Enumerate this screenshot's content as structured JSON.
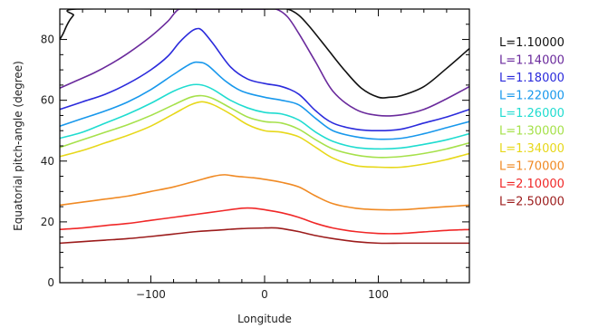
{
  "chart_data": {
    "type": "line",
    "title": "",
    "xlabel": "Longitude",
    "ylabel": "Equatorial pitch-angle (degree)",
    "xlim": [
      -180,
      180
    ],
    "ylim": [
      0,
      90
    ],
    "xticks": [
      -100,
      0,
      100
    ],
    "xtick_labels": [
      "−100",
      "0",
      "100"
    ],
    "yticks": [
      0,
      20,
      40,
      60,
      80
    ],
    "ytick_labels": [
      "0",
      "20",
      "40",
      "60",
      "80"
    ],
    "grid": false,
    "legend_position": "right",
    "series": [
      {
        "name": "L=1.10000",
        "color": "#111111",
        "x": [
          -180,
          -177,
          -174,
          -171,
          -168,
          -165,
          -60,
          -40,
          -20,
          0,
          10,
          20,
          30,
          40,
          55,
          70,
          85,
          100,
          110,
          120,
          140,
          160,
          180
        ],
        "y": [
          80,
          82,
          84.5,
          86.5,
          88,
          90,
          90,
          90,
          90,
          90,
          90,
          90,
          88,
          84,
          77,
          70,
          64,
          61,
          61,
          61.5,
          64.5,
          70.5,
          77
        ]
      },
      {
        "name": "L=1.14000",
        "color": "#6a2a9c",
        "x": [
          -180,
          -165,
          -150,
          -135,
          -120,
          -100,
          -85,
          -75,
          -60,
          -40,
          -20,
          0,
          10,
          20,
          30,
          45,
          60,
          80,
          100,
          120,
          140,
          160,
          180
        ],
        "y": [
          64,
          66.5,
          69,
          72,
          75.5,
          81,
          86,
          90,
          90,
          90,
          90,
          90,
          90,
          87.5,
          82,
          72.5,
          63,
          57,
          55,
          55.2,
          57,
          60.5,
          64.5
        ]
      },
      {
        "name": "L=1.18000",
        "color": "#2b2bdc",
        "x": [
          -180,
          -160,
          -140,
          -120,
          -100,
          -85,
          -75,
          -65,
          -60,
          -55,
          -45,
          -30,
          -15,
          0,
          15,
          30,
          45,
          60,
          80,
          100,
          120,
          140,
          160,
          180
        ],
        "y": [
          57,
          59.5,
          62,
          65.5,
          70,
          74.5,
          79,
          82.5,
          83.5,
          83,
          78.5,
          71,
          67,
          65.5,
          64.5,
          62,
          56.5,
          52.5,
          50.5,
          50,
          50.5,
          52.5,
          54.5,
          57
        ]
      },
      {
        "name": "L=1.22000",
        "color": "#1898ec",
        "x": [
          -180,
          -160,
          -140,
          -120,
          -100,
          -80,
          -65,
          -58,
          -50,
          -35,
          -20,
          0,
          15,
          30,
          45,
          60,
          80,
          100,
          120,
          140,
          160,
          180
        ],
        "y": [
          51.5,
          54,
          56.5,
          59.5,
          63.5,
          68.5,
          72,
          72.5,
          71.5,
          66.5,
          63,
          61,
          60,
          58.5,
          54,
          50,
          48,
          47.2,
          47.5,
          49,
          51,
          53
        ]
      },
      {
        "name": "L=1.26000",
        "color": "#20dcd0",
        "x": [
          -180,
          -160,
          -140,
          -120,
          -100,
          -80,
          -65,
          -55,
          -45,
          -30,
          -15,
          0,
          15,
          30,
          45,
          60,
          80,
          100,
          120,
          140,
          160,
          180
        ],
        "y": [
          47.5,
          49.5,
          52.5,
          55.5,
          59,
          63,
          65,
          65,
          63.5,
          60,
          57.5,
          56,
          55.5,
          53.5,
          49.5,
          46.5,
          44.5,
          44,
          44.3,
          45.5,
          47,
          49
        ]
      },
      {
        "name": "L=1.30000",
        "color": "#a6e14b",
        "x": [
          -180,
          -160,
          -140,
          -120,
          -100,
          -80,
          -65,
          -55,
          -45,
          -30,
          -15,
          0,
          15,
          30,
          45,
          60,
          80,
          100,
          120,
          140,
          160,
          180
        ],
        "y": [
          44.5,
          47,
          49.5,
          52,
          55,
          58.5,
          61,
          61.5,
          60.5,
          57.5,
          54.5,
          53,
          52.5,
          50.5,
          47,
          44,
          42,
          41.2,
          41.5,
          42.5,
          44,
          46
        ]
      },
      {
        "name": "L=1.34000",
        "color": "#e7d81a",
        "x": [
          -180,
          -160,
          -140,
          -120,
          -100,
          -80,
          -65,
          -55,
          -45,
          -30,
          -15,
          0,
          15,
          30,
          45,
          60,
          80,
          100,
          120,
          140,
          160,
          180
        ],
        "y": [
          41.5,
          43.5,
          46,
          48.5,
          51.5,
          55.5,
          58.5,
          59.5,
          58.5,
          55.5,
          52,
          50,
          49.5,
          48,
          44.5,
          41,
          38.5,
          38,
          38,
          39,
          40.5,
          42.5
        ]
      },
      {
        "name": "L=1.70000",
        "color": "#f08a24",
        "x": [
          -180,
          -160,
          -140,
          -120,
          -100,
          -80,
          -60,
          -45,
          -35,
          -25,
          -10,
          0,
          15,
          30,
          45,
          60,
          80,
          100,
          120,
          140,
          160,
          180
        ],
        "y": [
          25.5,
          26.5,
          27.5,
          28.5,
          30,
          31.5,
          33.5,
          35,
          35.5,
          35,
          34.5,
          34,
          33,
          31.5,
          28.5,
          26,
          24.5,
          24,
          24,
          24.5,
          25,
          25.5
        ]
      },
      {
        "name": "L=2.10000",
        "color": "#f02828",
        "x": [
          -180,
          -160,
          -140,
          -120,
          -100,
          -80,
          -60,
          -40,
          -20,
          -10,
          0,
          15,
          30,
          45,
          60,
          80,
          100,
          120,
          140,
          160,
          180
        ],
        "y": [
          17.5,
          18,
          18.8,
          19.5,
          20.5,
          21.5,
          22.5,
          23.5,
          24.5,
          24.5,
          24,
          23,
          21.5,
          19.5,
          18,
          16.8,
          16.2,
          16.2,
          16.7,
          17.2,
          17.5
        ]
      },
      {
        "name": "L=2.50000",
        "color": "#9c1c1c",
        "x": [
          -180,
          -160,
          -140,
          -120,
          -100,
          -80,
          -60,
          -40,
          -20,
          0,
          10,
          20,
          30,
          45,
          60,
          80,
          100,
          120,
          140,
          160,
          180
        ],
        "y": [
          13,
          13.5,
          14,
          14.5,
          15.2,
          16,
          16.8,
          17.3,
          17.8,
          18,
          18,
          17.5,
          16.8,
          15.5,
          14.5,
          13.5,
          13,
          13,
          13,
          13,
          13
        ]
      }
    ]
  }
}
